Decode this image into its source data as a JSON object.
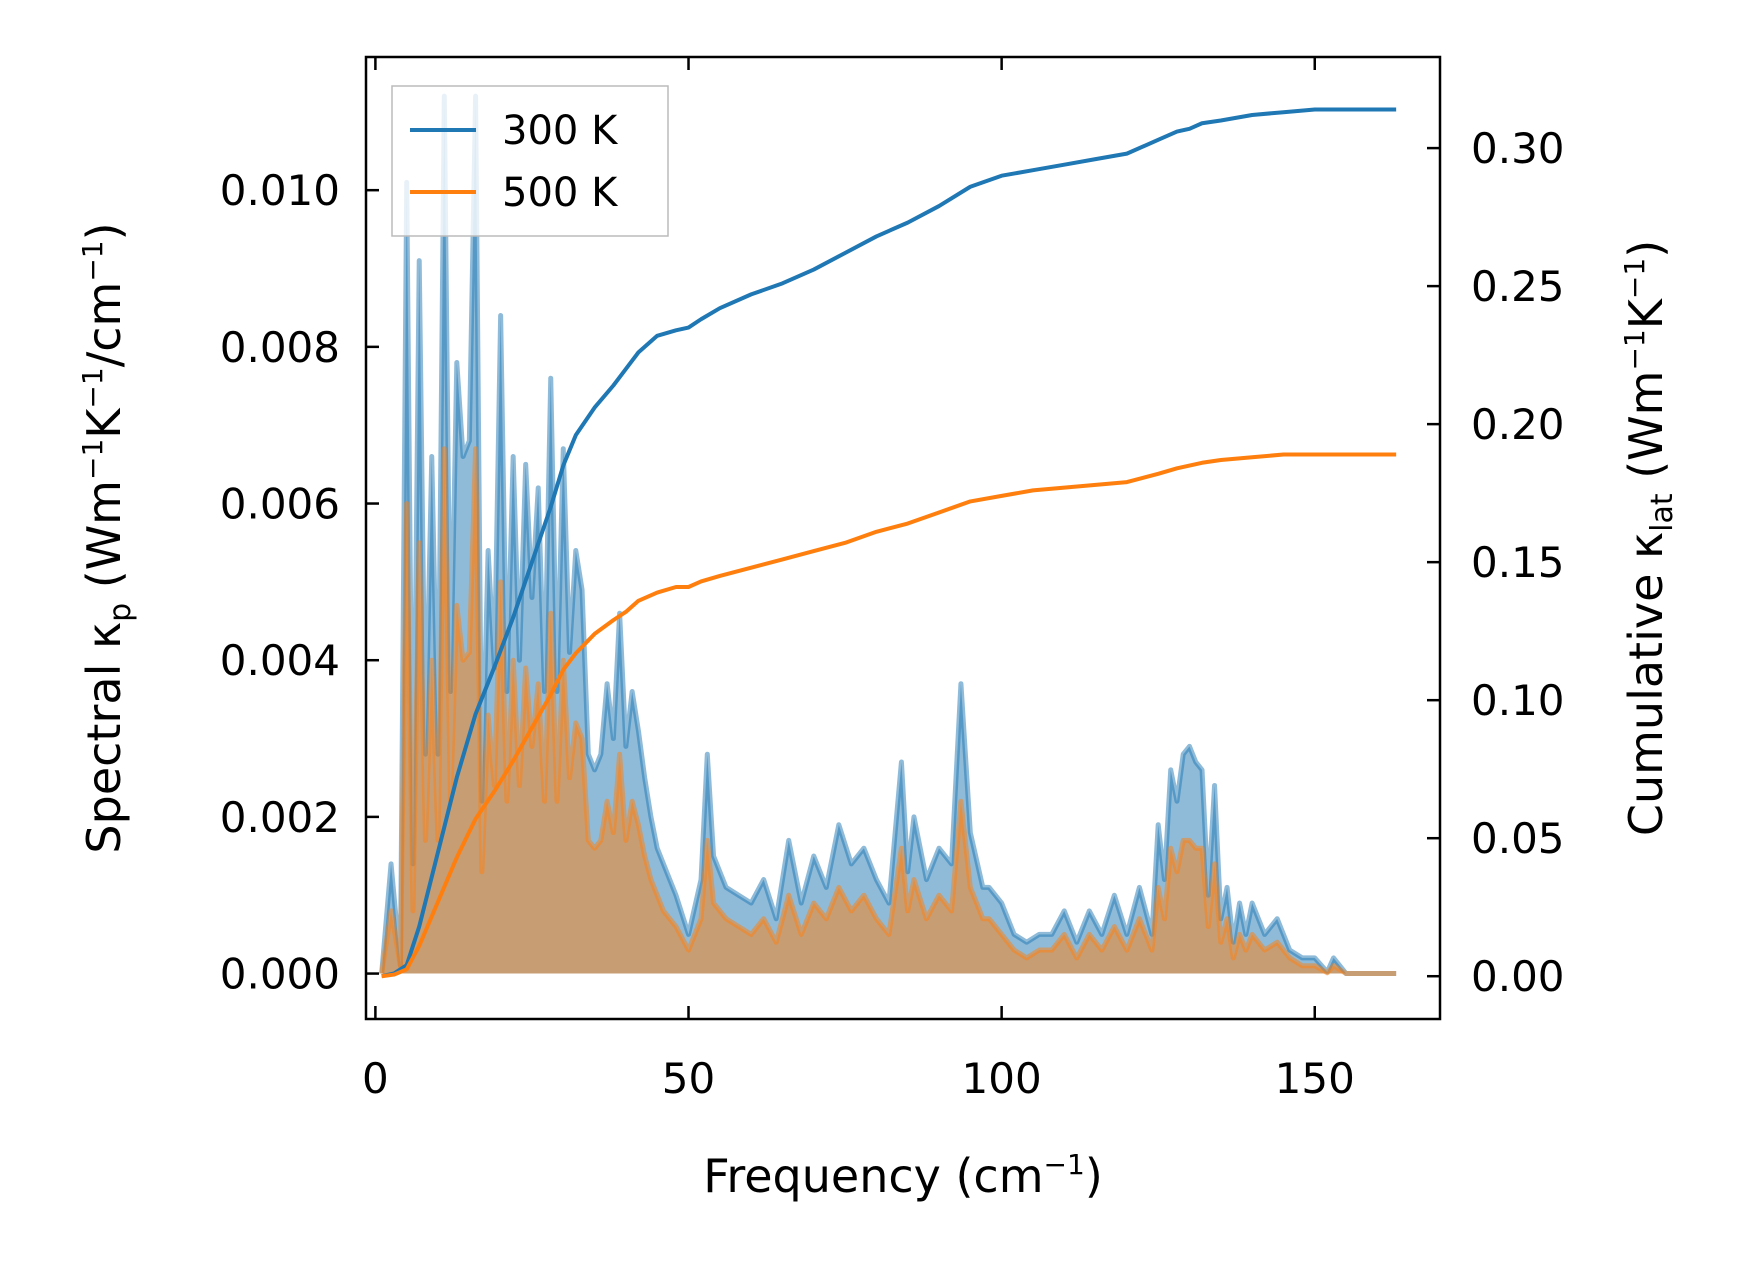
{
  "chart_data": {
    "type": "line",
    "xlabel": {
      "main": "Frequency (cm",
      "sup": "−1",
      "close": ")"
    },
    "ylabel_left": {
      "main": "Spectral κ",
      "sub": "p",
      "unit": " (Wm",
      "sup1": "−1",
      "mid": "K",
      "sup2": "−1",
      "mid2": "/cm",
      "sup3": "−1",
      "close": ")"
    },
    "ylabel_right": {
      "main": "Cumulative κ",
      "sub": "lat",
      "unit": " (Wm",
      "sup1": "−1",
      "mid": "K",
      "sup2": "−1",
      "close": ")"
    },
    "xlim": [
      -1.5,
      170
    ],
    "ylim_left": [
      -0.00058,
      0.0117
    ],
    "ylim_right": [
      -0.0155,
      0.333
    ],
    "xticks": [
      0,
      50,
      100,
      150
    ],
    "xtick_labels": [
      "0",
      "50",
      "100",
      "150"
    ],
    "yticks_left": [
      0.0,
      0.002,
      0.004,
      0.006,
      0.008,
      0.01
    ],
    "ytick_labels_left": [
      "0.000",
      "0.002",
      "0.004",
      "0.006",
      "0.008",
      "0.010"
    ],
    "yticks_right": [
      0.0,
      0.05,
      0.1,
      0.15,
      0.2,
      0.25,
      0.3
    ],
    "ytick_labels_right": [
      "0.00",
      "0.05",
      "0.10",
      "0.15",
      "0.20",
      "0.25",
      "0.30"
    ],
    "legend": {
      "position": "upper-left",
      "entries": [
        "300 K",
        "500 K"
      ]
    },
    "colors": {
      "300 K": "#1f77b4",
      "500 K": "#ff7f0e"
    },
    "spectral": {
      "x": [
        1,
        2.5,
        4,
        5,
        6,
        7,
        8,
        9,
        10,
        11,
        12,
        13,
        14,
        15,
        16,
        17,
        18,
        19,
        20,
        21,
        22,
        23,
        24,
        25,
        26,
        27,
        28,
        29,
        30,
        31,
        32,
        33,
        34,
        35,
        36,
        37,
        38,
        39,
        40,
        41,
        42,
        43,
        44,
        45,
        46,
        48,
        50,
        52,
        53,
        54,
        56,
        58,
        60,
        62,
        64,
        66,
        68,
        70,
        72,
        74,
        76,
        78,
        80,
        82,
        84,
        85,
        86,
        88,
        90,
        92,
        93.5,
        95,
        97,
        98,
        100,
        102,
        104,
        106,
        108,
        110,
        112,
        114,
        116,
        118,
        120,
        122,
        124,
        125,
        126,
        127,
        128,
        129,
        130,
        131,
        132,
        133,
        134,
        135,
        136,
        137,
        138,
        139,
        140,
        142,
        144,
        146,
        148,
        150,
        152,
        153,
        155,
        163
      ],
      "s300": [
        0,
        0.0014,
        0.0001,
        0.0101,
        0.0014,
        0.0091,
        0.0028,
        0.0066,
        0.0028,
        0.0112,
        0.0036,
        0.0078,
        0.0066,
        0.0068,
        0.0112,
        0.0022,
        0.0054,
        0.0039,
        0.0084,
        0.0036,
        0.0066,
        0.004,
        0.0065,
        0.0048,
        0.0062,
        0.0036,
        0.0076,
        0.0036,
        0.0067,
        0.0041,
        0.0054,
        0.0049,
        0.0028,
        0.0026,
        0.0028,
        0.0037,
        0.003,
        0.0046,
        0.0029,
        0.0036,
        0.0031,
        0.0025,
        0.002,
        0.0016,
        0.0014,
        0.001,
        0.0005,
        0.0012,
        0.0028,
        0.0015,
        0.0011,
        0.001,
        0.0009,
        0.0012,
        0.0007,
        0.0017,
        0.0009,
        0.0015,
        0.0011,
        0.0019,
        0.0014,
        0.0016,
        0.0012,
        0.0009,
        0.0027,
        0.0013,
        0.002,
        0.0012,
        0.0016,
        0.0014,
        0.0037,
        0.0018,
        0.0011,
        0.0011,
        0.0009,
        0.0005,
        0.0004,
        0.0005,
        0.0005,
        0.0008,
        0.0004,
        0.0008,
        0.0005,
        0.001,
        0.0005,
        0.0011,
        0.0005,
        0.0019,
        0.0012,
        0.0026,
        0.0022,
        0.0028,
        0.0029,
        0.0027,
        0.0026,
        0.001,
        0.0024,
        0.0007,
        0.0011,
        0.0004,
        0.0009,
        0.0005,
        0.0009,
        0.0005,
        0.0007,
        0.0003,
        0.0002,
        0.0002,
        2e-05,
        0.0002,
        0.0,
        0.0
      ],
      "s500": [
        0,
        0.0008,
        0.0001,
        0.006,
        0.0008,
        0.0055,
        0.0017,
        0.004,
        0.0017,
        0.0067,
        0.0022,
        0.0047,
        0.004,
        0.0041,
        0.0067,
        0.0013,
        0.0033,
        0.0024,
        0.005,
        0.0022,
        0.004,
        0.0024,
        0.0039,
        0.0029,
        0.0037,
        0.0022,
        0.0046,
        0.0022,
        0.004,
        0.0025,
        0.0032,
        0.003,
        0.0017,
        0.0016,
        0.0017,
        0.0022,
        0.0018,
        0.0028,
        0.0017,
        0.0022,
        0.0019,
        0.0015,
        0.0012,
        0.001,
        0.0008,
        0.0006,
        0.0003,
        0.0007,
        0.0017,
        0.0009,
        0.0007,
        0.0006,
        0.0005,
        0.0007,
        0.0004,
        0.001,
        0.0005,
        0.0009,
        0.0007,
        0.0011,
        0.0008,
        0.001,
        0.0007,
        0.0005,
        0.0016,
        0.0008,
        0.0012,
        0.0007,
        0.001,
        0.0008,
        0.0022,
        0.0011,
        0.0007,
        0.0007,
        0.0005,
        0.0003,
        0.0002,
        0.0003,
        0.0003,
        0.0005,
        0.0002,
        0.0005,
        0.0003,
        0.0006,
        0.0003,
        0.0007,
        0.0003,
        0.0011,
        0.0007,
        0.0016,
        0.0013,
        0.0017,
        0.0017,
        0.0016,
        0.0016,
        0.0006,
        0.0014,
        0.0004,
        0.0007,
        0.0002,
        0.0005,
        0.0003,
        0.0005,
        0.0003,
        0.0004,
        0.0002,
        0.0001,
        0.0001,
        1e-05,
        0.0001,
        0.0,
        0.0
      ]
    },
    "cumulative": {
      "x": [
        1,
        3,
        5,
        7,
        10,
        13,
        16,
        19,
        22,
        25,
        28,
        30,
        32,
        35,
        38,
        40,
        42,
        45,
        48,
        50,
        52,
        55,
        60,
        65,
        70,
        75,
        80,
        85,
        90,
        95,
        100,
        105,
        110,
        115,
        120,
        125,
        128,
        130,
        132,
        135,
        140,
        145,
        150,
        155,
        163
      ],
      "c300": [
        0,
        0.001,
        0.004,
        0.018,
        0.045,
        0.072,
        0.095,
        0.112,
        0.13,
        0.15,
        0.17,
        0.185,
        0.196,
        0.206,
        0.214,
        0.22,
        0.226,
        0.232,
        0.234,
        0.235,
        0.238,
        0.242,
        0.247,
        0.251,
        0.256,
        0.262,
        0.268,
        0.273,
        0.279,
        0.286,
        0.29,
        0.292,
        0.294,
        0.296,
        0.298,
        0.303,
        0.306,
        0.307,
        0.309,
        0.31,
        0.312,
        0.313,
        0.314,
        0.314,
        0.314
      ],
      "c500": [
        0,
        0.0006,
        0.0025,
        0.011,
        0.027,
        0.043,
        0.057,
        0.067,
        0.078,
        0.09,
        0.102,
        0.111,
        0.117,
        0.124,
        0.129,
        0.132,
        0.136,
        0.139,
        0.141,
        0.141,
        0.143,
        0.145,
        0.148,
        0.151,
        0.154,
        0.157,
        0.161,
        0.164,
        0.168,
        0.172,
        0.174,
        0.176,
        0.177,
        0.178,
        0.179,
        0.182,
        0.184,
        0.185,
        0.186,
        0.187,
        0.188,
        0.189,
        0.189,
        0.189,
        0.189
      ]
    }
  }
}
